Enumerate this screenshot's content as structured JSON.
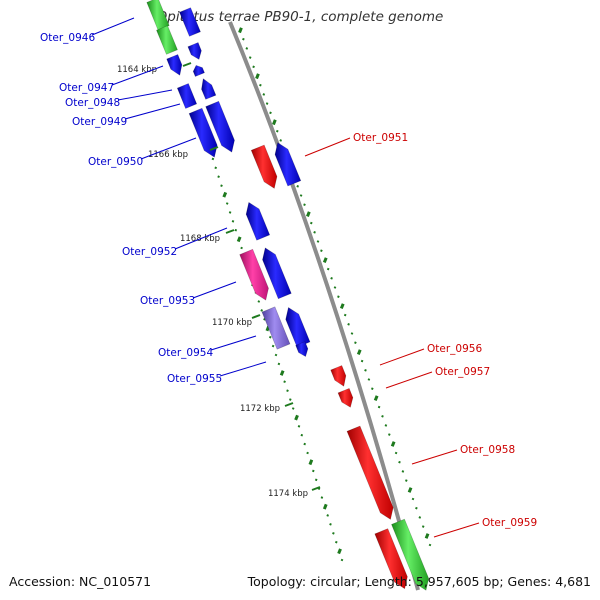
{
  "title": "Opitutus terrae PB90-1, complete genome",
  "footer": {
    "accession": "Accession: NC_010571",
    "summary": "Topology: circular; Length: 5,957,605 bp; Genes: 4,681"
  },
  "colors": {
    "backbone": "#8c8c8c",
    "forward_cds": "#0000ee",
    "reverse_cds": "#ff0000",
    "rna": "#33cc33",
    "other_a": "#e6198c",
    "other_b": "#8066d9",
    "tick": "#1e7a1e",
    "left_labels": "#0000cc",
    "right_labels": "#cc0000"
  },
  "scale_labels": [
    "1164 kbp",
    "1166 kbp",
    "1168 kbp",
    "1170 kbp",
    "1172 kbp",
    "1174 kbp"
  ],
  "genes_left": [
    {
      "id": "Oter_0946"
    },
    {
      "id": "Oter_0947"
    },
    {
      "id": "Oter_0948"
    },
    {
      "id": "Oter_0949"
    },
    {
      "id": "Oter_0950"
    },
    {
      "id": "Oter_0952"
    },
    {
      "id": "Oter_0953"
    },
    {
      "id": "Oter_0954"
    },
    {
      "id": "Oter_0955"
    }
  ],
  "genes_right": [
    {
      "id": "Oter_0951"
    },
    {
      "id": "Oter_0956"
    },
    {
      "id": "Oter_0957"
    },
    {
      "id": "Oter_0958"
    },
    {
      "id": "Oter_0959"
    }
  ]
}
